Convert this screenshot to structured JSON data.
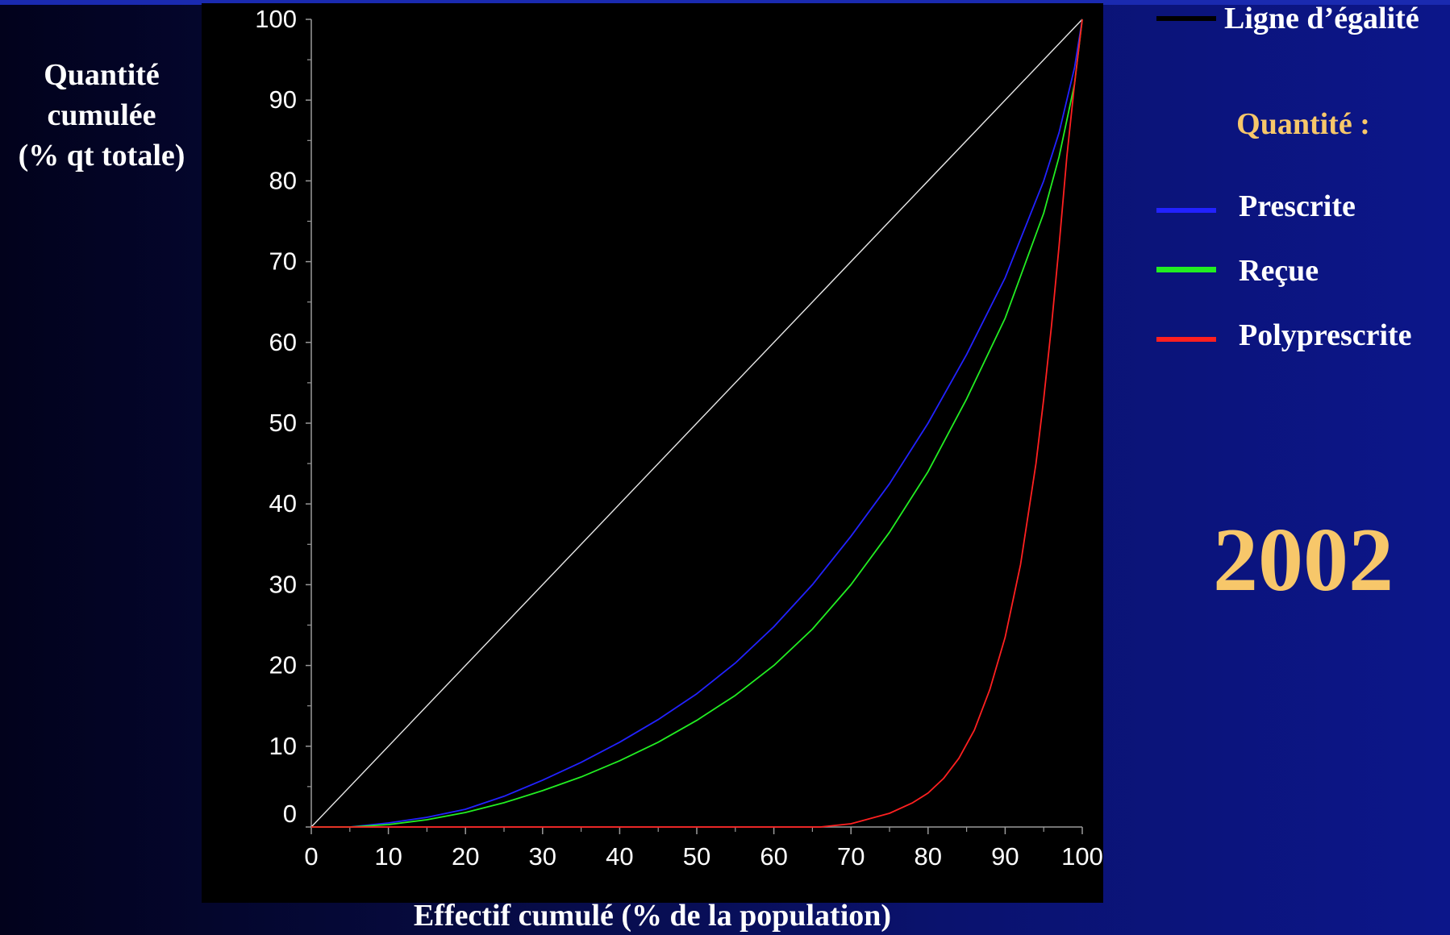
{
  "chart_data": {
    "type": "line",
    "xlabel": "Effectif cumulé (% de la population)",
    "ylabel_lines": [
      "Quantité",
      "cumulée",
      "(% qt totale)"
    ],
    "xlim": [
      0,
      100
    ],
    "ylim": [
      0,
      100
    ],
    "x_ticks": [
      "0",
      "10",
      "20",
      "30",
      "40",
      "50",
      "60",
      "70",
      "80",
      "90",
      "100"
    ],
    "y_ticks": [
      "0",
      "10",
      "20",
      "30",
      "40",
      "50",
      "60",
      "70",
      "80",
      "90",
      "100"
    ],
    "grid": false,
    "legend_position": "right",
    "legend_heading": "Quantité :",
    "annotation": "2002",
    "series": [
      {
        "name": "Ligne d’égalité",
        "legend_color": "#000000",
        "plot_color": "#e8e8e8",
        "x": [
          0,
          100
        ],
        "y": [
          0,
          100
        ]
      },
      {
        "name": "Prescrite",
        "color": "#2222ff",
        "x": [
          0,
          5,
          10,
          15,
          20,
          25,
          30,
          35,
          40,
          45,
          50,
          55,
          60,
          65,
          70,
          75,
          80,
          85,
          90,
          95,
          97,
          99,
          100
        ],
        "y": [
          0,
          0,
          0.5,
          1.2,
          2.2,
          3.8,
          5.8,
          8,
          10.5,
          13.3,
          16.5,
          20.3,
          24.8,
          30,
          36,
          42.5,
          50,
          58.5,
          68,
          80,
          86,
          94,
          100
        ]
      },
      {
        "name": "Reçue",
        "color": "#22ee22",
        "x": [
          0,
          5,
          10,
          15,
          20,
          25,
          30,
          35,
          40,
          45,
          50,
          55,
          60,
          65,
          70,
          75,
          80,
          85,
          90,
          95,
          97,
          99,
          100
        ],
        "y": [
          0,
          0,
          0.3,
          0.9,
          1.8,
          3,
          4.5,
          6.2,
          8.2,
          10.5,
          13.2,
          16.3,
          20,
          24.5,
          30,
          36.5,
          44,
          53,
          63,
          76,
          83,
          92,
          100
        ]
      },
      {
        "name": "Polyprescrite",
        "color": "#ff2020",
        "x": [
          0,
          66,
          70,
          75,
          78,
          80,
          82,
          84,
          86,
          88,
          90,
          92,
          94,
          95,
          96,
          97,
          98,
          99,
          100
        ],
        "y": [
          0,
          0,
          0.4,
          1.7,
          3,
          4.2,
          6,
          8.5,
          12,
          17,
          23.5,
          32.5,
          45,
          53,
          62,
          72,
          83,
          92,
          100
        ]
      }
    ]
  }
}
